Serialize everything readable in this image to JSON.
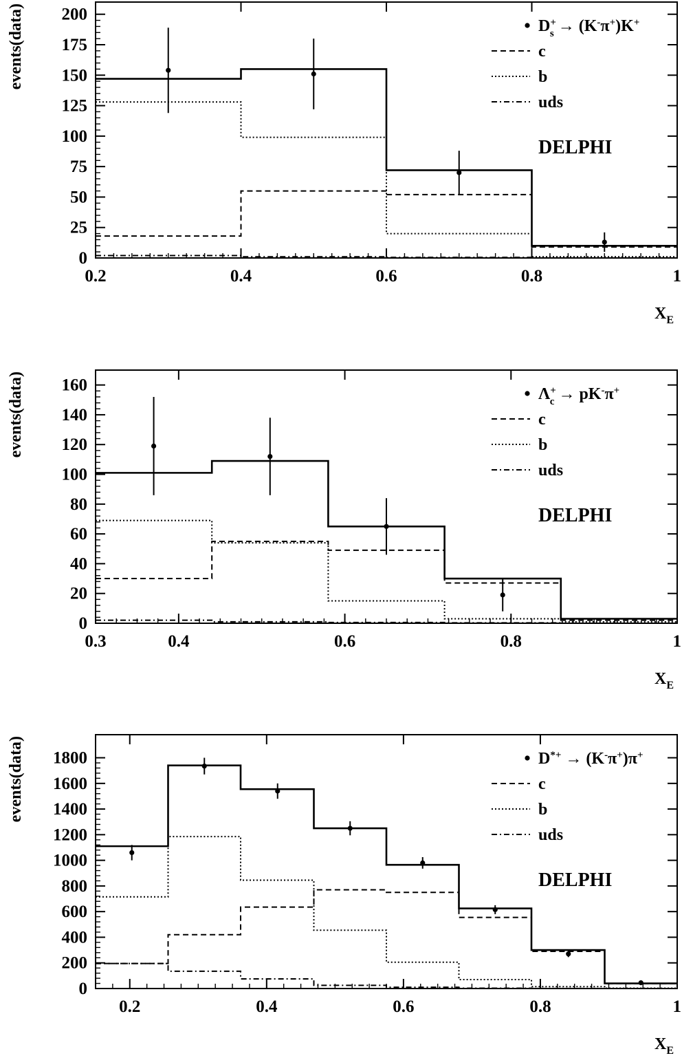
{
  "colors": {
    "ink": "#000000",
    "background": "#ffffff"
  },
  "chart_data": [
    {
      "type": "histogram",
      "xlabel": "X",
      "xlabel_sub": "E",
      "ylabel": "events(data)",
      "xlim": [
        0.2,
        1.0
      ],
      "ylim": [
        0,
        210
      ],
      "xticks": [
        0.2,
        0.4,
        0.6,
        0.8,
        1.0
      ],
      "xtick_labels": [
        "0.2",
        "0.4",
        "0.6",
        "0.8",
        "1"
      ],
      "yticks": [
        0,
        25,
        50,
        75,
        100,
        125,
        150,
        175,
        200
      ],
      "ytick_labels": [
        "0",
        "25",
        "50",
        "75",
        "100",
        "125",
        "150",
        "175",
        "200"
      ],
      "bin_edges": [
        0.2,
        0.4,
        0.6,
        0.8,
        1.0
      ],
      "legend_position": "top-right",
      "legend": [
        {
          "style": "point",
          "parts": [
            [
              "D"
            ],
            [
              "+",
              "sup"
            ],
            [
              "s",
              "sub"
            ],
            [
              " → (K"
            ],
            [
              "-",
              "sup"
            ],
            [
              "π"
            ],
            [
              "+",
              "sup"
            ],
            [
              ")K"
            ],
            [
              "+",
              "sup"
            ]
          ]
        },
        {
          "style": "dashed",
          "label": "c"
        },
        {
          "style": "dotted",
          "label": "b"
        },
        {
          "style": "dashdot",
          "label": "uds"
        }
      ],
      "experiment": "DELPHI",
      "series": [
        {
          "name": "total",
          "style": "solid",
          "values": [
            147,
            155,
            72,
            10
          ]
        },
        {
          "name": "c",
          "style": "dashed",
          "values": [
            18,
            55,
            52,
            9
          ]
        },
        {
          "name": "b",
          "style": "dotted",
          "values": [
            128,
            99,
            20,
            1
          ]
        },
        {
          "name": "uds",
          "style": "dashdot",
          "values": [
            2,
            1,
            0.5,
            0
          ]
        }
      ],
      "data_points": [
        {
          "x": 0.3,
          "y": 154,
          "err": 35
        },
        {
          "x": 0.5,
          "y": 151,
          "err": 29
        },
        {
          "x": 0.7,
          "y": 70,
          "err": 18
        },
        {
          "x": 0.9,
          "y": 13,
          "err": 8
        }
      ]
    },
    {
      "type": "histogram",
      "xlabel": "X",
      "xlabel_sub": "E",
      "ylabel": "events(data)",
      "xlim": [
        0.3,
        1.0
      ],
      "ylim": [
        0,
        170
      ],
      "xticks": [
        0.3,
        0.4,
        0.6,
        0.8,
        1.0
      ],
      "xtick_labels": [
        "0.3",
        "0.4",
        "0.6",
        "0.8",
        "1"
      ],
      "yticks": [
        0,
        20,
        40,
        60,
        80,
        100,
        120,
        140,
        160
      ],
      "ytick_labels": [
        "0",
        "20",
        "40",
        "60",
        "80",
        "100",
        "120",
        "140",
        "160"
      ],
      "bin_edges": [
        0.3,
        0.44,
        0.58,
        0.72,
        0.86,
        1.0
      ],
      "legend_position": "top-right",
      "legend": [
        {
          "style": "point",
          "parts": [
            [
              "Λ"
            ],
            [
              "+",
              "sup"
            ],
            [
              "c",
              "sub"
            ],
            [
              " → pK"
            ],
            [
              "-",
              "sup"
            ],
            [
              "π"
            ],
            [
              "+",
              "sup"
            ]
          ]
        },
        {
          "style": "dashed",
          "label": "c"
        },
        {
          "style": "dotted",
          "label": "b"
        },
        {
          "style": "dashdot",
          "label": "uds"
        }
      ],
      "experiment": "DELPHI",
      "series": [
        {
          "name": "total",
          "style": "solid",
          "values": [
            101,
            109,
            65,
            30,
            3
          ]
        },
        {
          "name": "c",
          "style": "dashed",
          "values": [
            30,
            55,
            49,
            27,
            2
          ]
        },
        {
          "name": "b",
          "style": "dotted",
          "values": [
            69,
            54,
            15,
            3,
            1
          ]
        },
        {
          "name": "uds",
          "style": "dashdot",
          "values": [
            2,
            1,
            0.5,
            0.3,
            0
          ]
        }
      ],
      "data_points": [
        {
          "x": 0.37,
          "y": 119,
          "err": 33
        },
        {
          "x": 0.51,
          "y": 112,
          "err": 26
        },
        {
          "x": 0.65,
          "y": 65,
          "err": 19
        },
        {
          "x": 0.79,
          "y": 19,
          "err": 11
        }
      ]
    },
    {
      "type": "histogram",
      "xlabel": "X",
      "xlabel_sub": "E",
      "ylabel": "events(data)",
      "xlim": [
        0.15,
        1.0
      ],
      "ylim": [
        0,
        1980
      ],
      "xticks": [
        0.2,
        0.4,
        0.6,
        0.8,
        1.0
      ],
      "xtick_labels": [
        "0.2",
        "0.4",
        "0.6",
        "0.8",
        "1"
      ],
      "yticks": [
        0,
        200,
        400,
        600,
        800,
        1000,
        1200,
        1400,
        1600,
        1800
      ],
      "ytick_labels": [
        "0",
        "200",
        "400",
        "600",
        "800",
        "1000",
        "1200",
        "1400",
        "1600",
        "1800"
      ],
      "bin_edges": [
        0.15,
        0.256,
        0.362,
        0.469,
        0.575,
        0.681,
        0.787,
        0.894,
        1.0
      ],
      "legend_position": "top-right",
      "legend": [
        {
          "style": "point",
          "parts": [
            [
              "D"
            ],
            [
              "*+",
              "sup"
            ],
            [
              " → (K"
            ],
            [
              "-",
              "sup"
            ],
            [
              "π"
            ],
            [
              "+",
              "sup"
            ],
            [
              ")π"
            ],
            [
              "+",
              "sup"
            ]
          ]
        },
        {
          "style": "dashed",
          "label": "c"
        },
        {
          "style": "dotted",
          "label": "b"
        },
        {
          "style": "dashdot",
          "label": "uds"
        }
      ],
      "experiment": "DELPHI",
      "series": [
        {
          "name": "total",
          "style": "solid",
          "values": [
            1110,
            1740,
            1555,
            1250,
            965,
            625,
            300,
            40
          ]
        },
        {
          "name": "c",
          "style": "dashed",
          "values": [
            195,
            420,
            635,
            770,
            750,
            555,
            290,
            38
          ]
        },
        {
          "name": "b",
          "style": "dotted",
          "values": [
            715,
            1185,
            845,
            455,
            205,
            70,
            15,
            3
          ]
        },
        {
          "name": "uds",
          "style": "dashdot",
          "values": [
            195,
            135,
            75,
            25,
            10,
            3,
            1,
            0
          ]
        }
      ],
      "data_points": [
        {
          "x": 0.203,
          "y": 1060,
          "err": 60
        },
        {
          "x": 0.309,
          "y": 1735,
          "err": 65
        },
        {
          "x": 0.416,
          "y": 1540,
          "err": 60
        },
        {
          "x": 0.522,
          "y": 1250,
          "err": 55
        },
        {
          "x": 0.628,
          "y": 980,
          "err": 45
        },
        {
          "x": 0.734,
          "y": 615,
          "err": 35
        },
        {
          "x": 0.841,
          "y": 270,
          "err": 25
        },
        {
          "x": 0.947,
          "y": 45,
          "err": 10
        }
      ]
    }
  ]
}
